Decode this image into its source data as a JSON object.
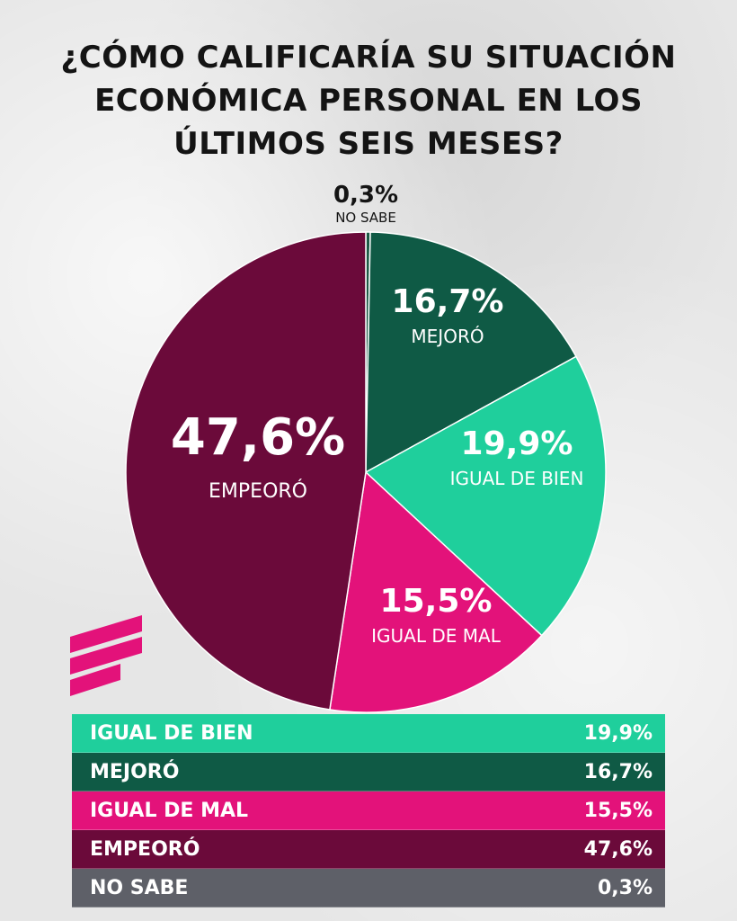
{
  "title_lines": [
    "¿CÓMO CALIFICARÍA SU SITUACIÓN",
    "ECONÓMICA PERSONAL EN LOS",
    "ÚLTIMOS SEIS MESES?"
  ],
  "chart_data": {
    "type": "pie",
    "title": "¿CÓMO CALIFICARÍA SU SITUACIÓN ECONÓMICA PERSONAL EN LOS ÚLTIMOS SEIS MESES?",
    "slices": [
      {
        "label": "NO SABE",
        "value": 0.3,
        "display": "0,3%",
        "color": "#1c5a45"
      },
      {
        "label": "MEJORÓ",
        "value": 16.7,
        "display": "16,7%",
        "color": "#0f5a45"
      },
      {
        "label": "IGUAL DE BIEN",
        "value": 19.9,
        "display": "19,9%",
        "color": "#1fcf9c"
      },
      {
        "label": "IGUAL DE MAL",
        "value": 15.5,
        "display": "15,5%",
        "color": "#e3127a"
      },
      {
        "label": "EMPEORÓ",
        "value": 47.6,
        "display": "47,6%",
        "color": "#6b0a3a"
      }
    ]
  },
  "legend": [
    {
      "label": "IGUAL DE BIEN",
      "value": "19,9%",
      "color": "#1fcf9c"
    },
    {
      "label": "MEJORÓ",
      "value": "16,7%",
      "color": "#0f5a45"
    },
    {
      "label": "IGUAL DE MAL",
      "value": "15,5%",
      "color": "#e3127a"
    },
    {
      "label": "EMPEORÓ",
      "value": "47,6%",
      "color": "#6b0a3a"
    },
    {
      "label": "NO SABE",
      "value": "0,3%",
      "color": "#5e6068"
    }
  ],
  "logo": {
    "icon": "brand-stripes-icon",
    "color": "#e3127a"
  }
}
